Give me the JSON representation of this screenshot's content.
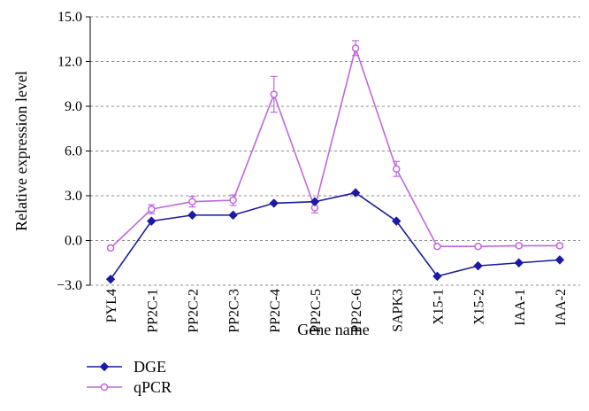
{
  "chart_data": {
    "type": "line",
    "categories": [
      "PYL4",
      "PP2C-1",
      "PP2C-2",
      "PP2C-3",
      "PP2C-4",
      "PP2C-5",
      "PP2C-6",
      "SAPK3",
      "X15-1",
      "X15-2",
      "IAA-1",
      "IAA-2"
    ],
    "series": [
      {
        "name": "DGE",
        "color": "#1a1aa6",
        "marker": "diamond",
        "values": [
          -2.6,
          1.3,
          1.7,
          1.7,
          2.5,
          2.6,
          3.2,
          1.3,
          -2.4,
          -1.7,
          -1.5,
          -1.3
        ]
      },
      {
        "name": "qPCR",
        "color": "#c066e0",
        "marker": "open-circle",
        "values": [
          -0.5,
          2.1,
          2.6,
          2.7,
          9.8,
          2.2,
          12.9,
          4.8,
          -0.4,
          -0.4,
          -0.35,
          -0.35
        ],
        "errors": [
          0.1,
          0.3,
          0.35,
          0.35,
          1.2,
          0.35,
          0.5,
          0.5,
          0.1,
          0.1,
          0.1,
          0.1
        ]
      }
    ],
    "xlabel": "Gene name",
    "ylabel": "Relative expression level",
    "ylim": [
      -3,
      15
    ],
    "yticks": [
      "−3.0",
      "0.0",
      "3.0",
      "6.0",
      "9.0",
      "12.0",
      "15.0"
    ],
    "ytick_values": [
      -3,
      0,
      3,
      6,
      9,
      12,
      15
    ],
    "grid": "horizontal-dashed",
    "legend_position": "bottom-left"
  }
}
